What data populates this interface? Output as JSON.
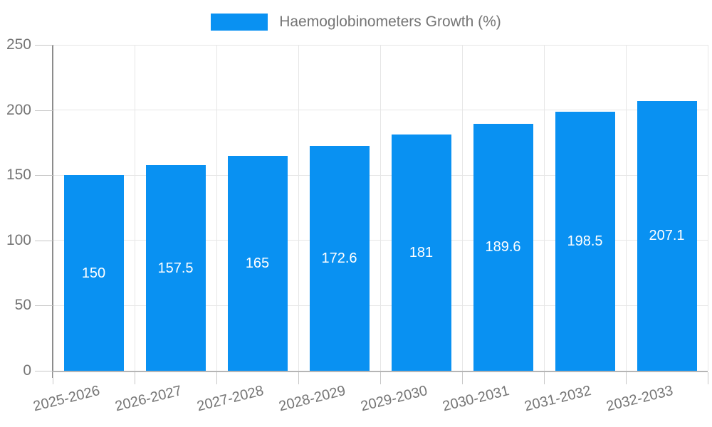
{
  "legend": {
    "label": "Haemoglobinometers Growth (%)"
  },
  "chart_data": {
    "type": "bar",
    "series_name": "Haemoglobinometers Growth (%)",
    "categories": [
      "2025-2026",
      "2026-2027",
      "2027-2028",
      "2028-2029",
      "2029-2030",
      "2030-2031",
      "2031-2032",
      "2032-2033"
    ],
    "values": [
      150,
      157.5,
      165,
      172.6,
      181,
      189.6,
      198.5,
      207.1
    ],
    "value_labels": [
      "150",
      "157.5",
      "165",
      "172.6",
      "181",
      "189.6",
      "198.5",
      "207.1"
    ],
    "xlabel": "",
    "ylabel": "",
    "ylim": [
      0,
      250
    ],
    "yticks": [
      0,
      50,
      100,
      150,
      200,
      250
    ],
    "grid": true,
    "legend_position": "top-center"
  },
  "colors": {
    "bar": "#0991f2",
    "axis_text": "#757575",
    "grid_line": "#e6e6e6",
    "y_axis_line": "#8c8c8c",
    "x_axis_line": "#b5b5b5",
    "tick": "#c7c7c7",
    "value_text": "#ffffff",
    "background": "#ffffff"
  }
}
